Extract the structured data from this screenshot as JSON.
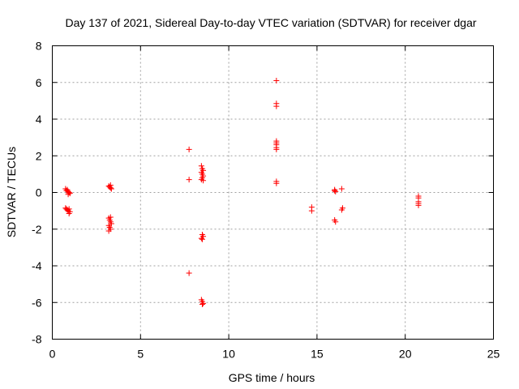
{
  "chart_data": {
    "type": "scatter",
    "title": "Day 137 of 2021, Sidereal Day-to-day VTEC variation (SDTVAR) for receiver dgar",
    "xlabel": "GPS time / hours",
    "ylabel": "SDTVAR / TECUs",
    "xlim": [
      0,
      25
    ],
    "ylim": [
      -8,
      8
    ],
    "xticks": [
      0,
      5,
      10,
      15,
      20,
      25
    ],
    "yticks": [
      -8,
      -6,
      -4,
      -2,
      0,
      2,
      4,
      6,
      8
    ],
    "xtick_labels": [
      "0",
      "5",
      "10",
      "15",
      "20",
      "25"
    ],
    "ytick_labels": [
      "-8",
      "-6",
      "-4",
      "-2",
      "0",
      "2",
      "4",
      "6",
      "8"
    ],
    "grid": true,
    "marker": "+",
    "color": "#ff0000",
    "series": [
      {
        "name": "SDTVAR",
        "points": [
          [
            0.75,
            0.2
          ],
          [
            0.8,
            0.1
          ],
          [
            0.85,
            0.15
          ],
          [
            0.9,
            0.05
          ],
          [
            0.95,
            0.0
          ],
          [
            1.0,
            -0.05
          ],
          [
            0.9,
            -0.1
          ],
          [
            0.75,
            -0.85
          ],
          [
            0.8,
            -0.9
          ],
          [
            0.85,
            -0.95
          ],
          [
            0.9,
            -1.0
          ],
          [
            0.95,
            -0.9
          ],
          [
            1.0,
            -1.05
          ],
          [
            0.95,
            -1.15
          ],
          [
            3.2,
            0.35
          ],
          [
            3.25,
            0.3
          ],
          [
            3.3,
            0.25
          ],
          [
            3.35,
            0.2
          ],
          [
            3.3,
            0.4
          ],
          [
            3.2,
            -1.4
          ],
          [
            3.25,
            -1.5
          ],
          [
            3.3,
            -1.6
          ],
          [
            3.35,
            -1.7
          ],
          [
            3.2,
            -1.8
          ],
          [
            3.25,
            -1.9
          ],
          [
            3.3,
            -2.0
          ],
          [
            3.2,
            -2.1
          ],
          [
            3.3,
            -1.35
          ],
          [
            7.75,
            2.35
          ],
          [
            7.75,
            0.7
          ],
          [
            7.75,
            -4.4
          ],
          [
            8.45,
            1.45
          ],
          [
            8.5,
            1.3
          ],
          [
            8.55,
            1.2
          ],
          [
            8.45,
            1.1
          ],
          [
            8.5,
            1.0
          ],
          [
            8.55,
            0.9
          ],
          [
            8.5,
            0.8
          ],
          [
            8.45,
            0.7
          ],
          [
            8.55,
            0.65
          ],
          [
            8.5,
            -2.3
          ],
          [
            8.55,
            -2.4
          ],
          [
            8.45,
            -2.5
          ],
          [
            8.5,
            -2.55
          ],
          [
            8.45,
            -5.85
          ],
          [
            8.5,
            -5.95
          ],
          [
            8.55,
            -6.05
          ],
          [
            8.5,
            -6.1
          ],
          [
            12.7,
            6.1
          ],
          [
            12.7,
            4.85
          ],
          [
            12.7,
            4.7
          ],
          [
            12.7,
            2.8
          ],
          [
            12.7,
            2.7
          ],
          [
            12.7,
            2.6
          ],
          [
            12.7,
            2.45
          ],
          [
            12.7,
            2.35
          ],
          [
            12.7,
            0.6
          ],
          [
            12.7,
            0.5
          ],
          [
            14.7,
            -0.8
          ],
          [
            14.7,
            -1.0
          ],
          [
            16.0,
            0.15
          ],
          [
            16.05,
            0.05
          ],
          [
            16.0,
            0.1
          ],
          [
            16.0,
            -1.5
          ],
          [
            16.05,
            -1.6
          ],
          [
            16.4,
            0.2
          ],
          [
            16.45,
            -0.85
          ],
          [
            16.4,
            -0.95
          ],
          [
            20.75,
            -0.2
          ],
          [
            20.75,
            -0.3
          ],
          [
            20.75,
            -0.5
          ],
          [
            20.75,
            -0.6
          ],
          [
            20.75,
            -0.7
          ]
        ]
      }
    ]
  }
}
